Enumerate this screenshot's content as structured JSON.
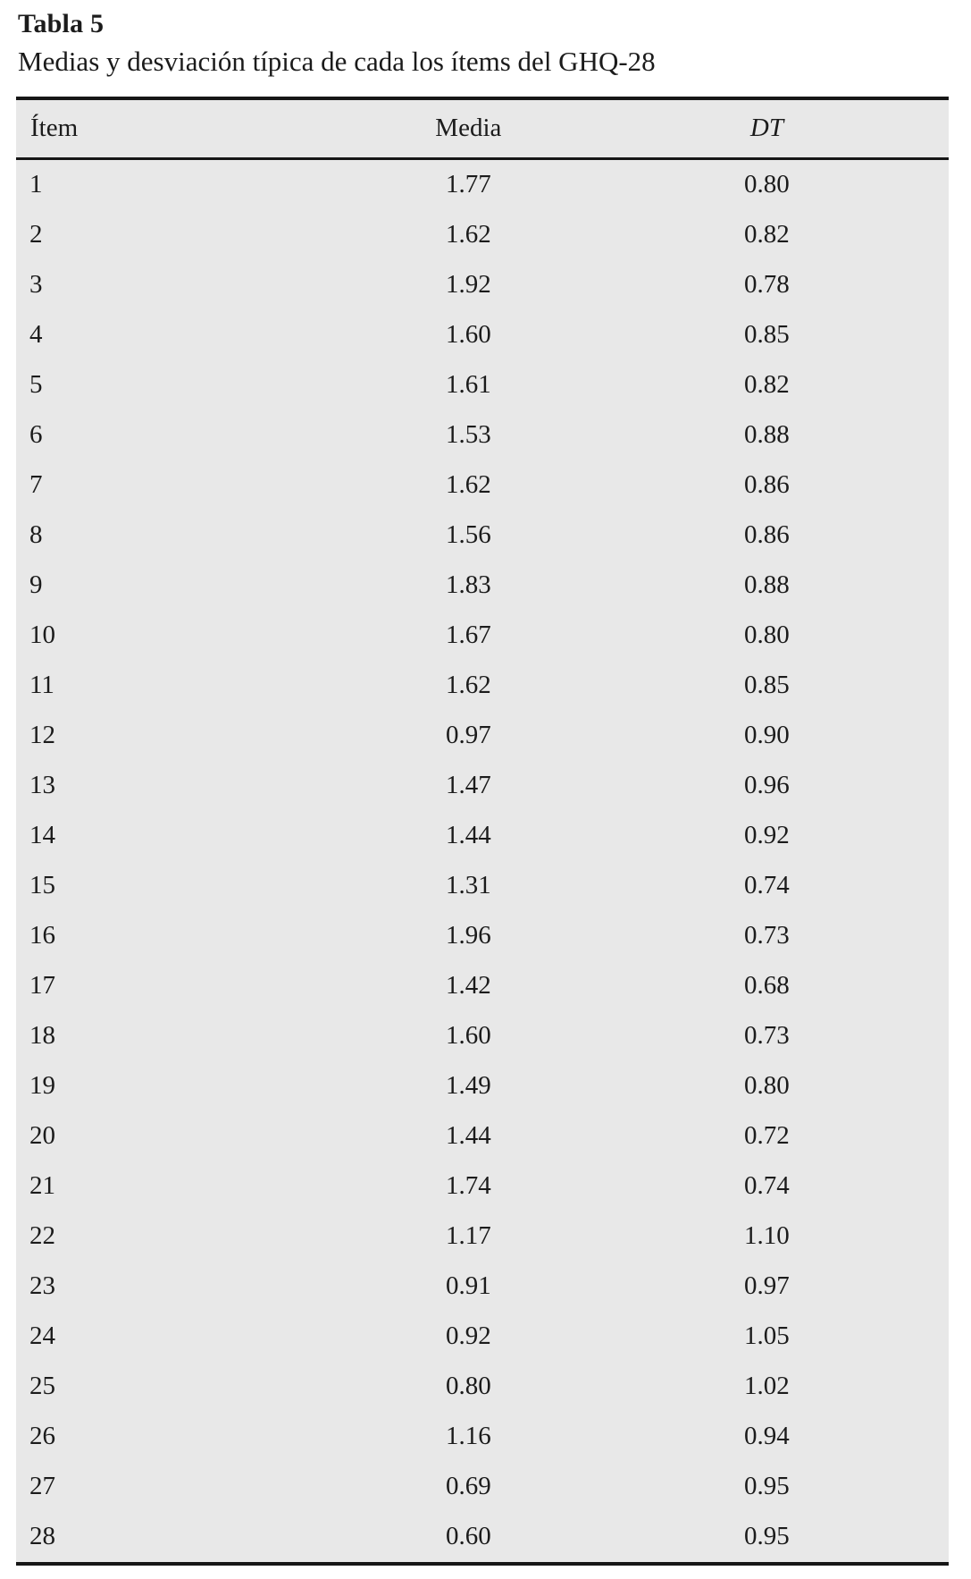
{
  "table": {
    "label": "Tabla 5",
    "caption": "Medias y desviación típica de cada los ítems del GHQ-28",
    "columns": [
      "Ítem",
      "Media",
      "DT"
    ],
    "rows": [
      [
        "1",
        "1.77",
        "0.80"
      ],
      [
        "2",
        "1.62",
        "0.82"
      ],
      [
        "3",
        "1.92",
        "0.78"
      ],
      [
        "4",
        "1.60",
        "0.85"
      ],
      [
        "5",
        "1.61",
        "0.82"
      ],
      [
        "6",
        "1.53",
        "0.88"
      ],
      [
        "7",
        "1.62",
        "0.86"
      ],
      [
        "8",
        "1.56",
        "0.86"
      ],
      [
        "9",
        "1.83",
        "0.88"
      ],
      [
        "10",
        "1.67",
        "0.80"
      ],
      [
        "11",
        "1.62",
        "0.85"
      ],
      [
        "12",
        "0.97",
        "0.90"
      ],
      [
        "13",
        "1.47",
        "0.96"
      ],
      [
        "14",
        "1.44",
        "0.92"
      ],
      [
        "15",
        "1.31",
        "0.74"
      ],
      [
        "16",
        "1.96",
        "0.73"
      ],
      [
        "17",
        "1.42",
        "0.68"
      ],
      [
        "18",
        "1.60",
        "0.73"
      ],
      [
        "19",
        "1.49",
        "0.80"
      ],
      [
        "20",
        "1.44",
        "0.72"
      ],
      [
        "21",
        "1.74",
        "0.74"
      ],
      [
        "22",
        "1.17",
        "1.10"
      ],
      [
        "23",
        "0.91",
        "0.97"
      ],
      [
        "24",
        "0.92",
        "1.05"
      ],
      [
        "25",
        "0.80",
        "1.02"
      ],
      [
        "26",
        "1.16",
        "0.94"
      ],
      [
        "27",
        "0.69",
        "0.95"
      ],
      [
        "28",
        "0.60",
        "0.95"
      ]
    ]
  },
  "colors": {
    "table_background": "#e8e8e8",
    "rule": "#161616",
    "text": "#1b1b1b",
    "page_background": "#ffffff"
  }
}
